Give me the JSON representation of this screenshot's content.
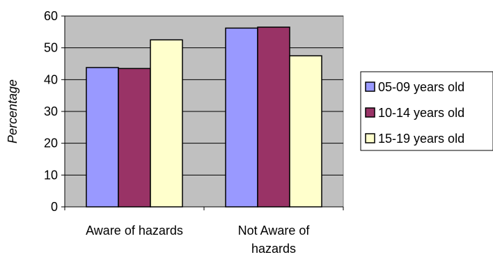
{
  "chart_data": {
    "type": "bar",
    "title": "",
    "xlabel": "",
    "ylabel": "Percentage",
    "ylim": [
      0,
      60
    ],
    "yticks": [
      0,
      10,
      20,
      30,
      40,
      50,
      60
    ],
    "grid": true,
    "legend_position": "right",
    "categories": [
      "Aware of hazards",
      "Not Aware of hazards"
    ],
    "category_lines": [
      [
        "Aware of hazards"
      ],
      [
        "Not Aware of",
        "hazards"
      ]
    ],
    "series": [
      {
        "name": "05-09 years old",
        "values": [
          43.8,
          56.2
        ],
        "color": "#9999ff"
      },
      {
        "name": "10-14 years old",
        "values": [
          43.5,
          56.5
        ],
        "color": "#993366"
      },
      {
        "name": "15-19 years old",
        "values": [
          52.5,
          47.5
        ],
        "color": "#ffffcc"
      }
    ],
    "plot_background": "#c0c0c0"
  }
}
